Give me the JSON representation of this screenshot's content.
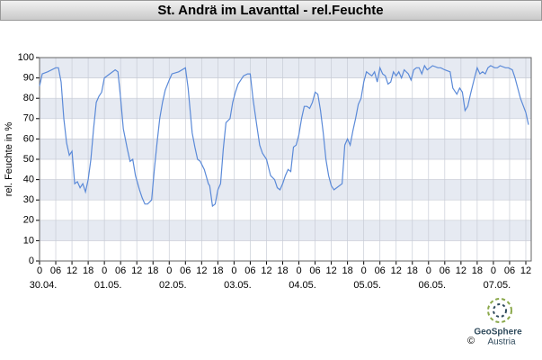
{
  "chart_data": {
    "type": "line",
    "title": "St. Andrä im Lavanttal - rel.Feuchte",
    "ylabel": "rel. Feuchte in %",
    "ylim": [
      0,
      100
    ],
    "yticks": [
      0,
      10,
      20,
      30,
      40,
      50,
      60,
      70,
      80,
      90,
      100
    ],
    "grid": true,
    "bands": true,
    "xlim": [
      0,
      182
    ],
    "xticks": [
      0,
      {
        "value": 6,
        "label": "06"
      },
      12,
      18,
      24,
      30,
      36,
      42,
      48,
      54,
      60,
      66,
      72,
      78,
      84,
      90,
      96,
      102,
      108,
      114,
      120,
      126,
      132,
      138,
      144,
      150,
      156,
      162,
      168,
      174,
      180
    ],
    "xtick_labels": [
      "0",
      "06",
      "12",
      "18",
      "0",
      "06",
      "12",
      "18",
      "0",
      "06",
      "12",
      "18",
      "0",
      "06",
      "12",
      "18",
      "0",
      "06",
      "12",
      "18",
      "0",
      "06",
      "12",
      "18",
      "0",
      "06",
      "12",
      "18",
      "0",
      "06",
      "12"
    ],
    "date_labels": [
      {
        "value": 0,
        "label": "30.04."
      },
      {
        "value": 24,
        "label": "01.05."
      },
      {
        "value": 48,
        "label": "02.05."
      },
      {
        "value": 72,
        "label": "03.05."
      },
      {
        "value": 96,
        "label": "04.05."
      },
      {
        "value": 120,
        "label": "05.05."
      },
      {
        "value": 144,
        "label": "06.05."
      },
      {
        "value": 168,
        "label": "07.05."
      }
    ],
    "logo": {
      "name": "GeoSphere",
      "sub": "Austria",
      "copyright": "©"
    },
    "series": [
      {
        "name": "rel.Feuchte",
        "color": "#5b8ad8",
        "x": [
          0,
          1,
          3,
          6,
          7,
          8,
          9,
          10,
          11,
          12,
          13,
          14,
          15,
          16,
          17,
          18,
          19,
          20,
          21,
          22,
          23,
          24,
          26,
          28,
          29,
          30,
          31,
          32.5,
          33.5,
          34.5,
          35.5,
          37,
          38,
          39,
          40,
          41.5,
          42.5,
          43.5,
          44.5,
          45.5,
          46.5,
          48,
          49,
          51.5,
          54,
          55,
          56.5,
          57.5,
          58.5,
          59.5,
          61,
          62.5,
          63,
          64,
          65,
          66,
          67,
          68,
          69,
          70.5,
          71.5,
          72.5,
          73.5,
          74.5,
          75.5,
          77,
          78,
          79,
          80.5,
          81.5,
          82.5,
          84,
          85.5,
          87,
          88,
          89,
          90,
          91,
          92,
          93,
          94,
          95,
          96,
          97,
          98,
          99,
          100,
          101,
          102,
          103,
          104,
          105,
          106,
          107,
          108,
          109,
          110,
          111,
          112,
          113,
          114,
          115,
          116,
          117,
          118,
          119,
          120,
          121,
          122,
          123,
          124,
          125,
          126,
          127,
          128,
          129,
          130,
          131,
          132,
          133,
          134,
          135,
          136.5,
          137.5,
          138.5,
          139.5,
          140.5,
          141.5,
          142.5,
          143.5,
          144.5,
          145.5,
          147.5,
          148.5,
          150,
          152,
          153,
          154.5,
          155.5,
          156.5,
          157.5,
          158.5,
          159.5,
          161,
          162,
          163,
          164,
          165,
          166,
          167,
          168.5,
          169.5,
          170.5,
          172.5,
          173.5,
          175,
          176,
          177,
          178,
          180,
          181
        ],
        "values": [
          86,
          92,
          93,
          95,
          95,
          88,
          70,
          58,
          52,
          54,
          38,
          39,
          36,
          38,
          34,
          40,
          50,
          65,
          78,
          81,
          83,
          90,
          92,
          94,
          93,
          80,
          65,
          55,
          49,
          50,
          42,
          35,
          31,
          28,
          28,
          30,
          45,
          58,
          70,
          78,
          84,
          89,
          92,
          93,
          95,
          85,
          63,
          56,
          50,
          49,
          45,
          38,
          37,
          27,
          28,
          35,
          38,
          55,
          68,
          70,
          78,
          83,
          87,
          89,
          91,
          92,
          92,
          80,
          66,
          57,
          53,
          50,
          42,
          40,
          36,
          35,
          38,
          42,
          45,
          44,
          56,
          57,
          62,
          70,
          76,
          76,
          75,
          78,
          83,
          82,
          74,
          63,
          50,
          42,
          37,
          35,
          36,
          37,
          38,
          57,
          60,
          57,
          64,
          70,
          77,
          80,
          88,
          93,
          92,
          91,
          93,
          88,
          95,
          92,
          91,
          87,
          88,
          93,
          91,
          93,
          90,
          94,
          92,
          89,
          94,
          95,
          95,
          92,
          96,
          94,
          95,
          96,
          95,
          95,
          94,
          93,
          85,
          82,
          85,
          83,
          74,
          76,
          82,
          90,
          95,
          92,
          93,
          92,
          95,
          96,
          95,
          95,
          96,
          95,
          95,
          94,
          90,
          85,
          80,
          73,
          67
        ]
      }
    ]
  }
}
